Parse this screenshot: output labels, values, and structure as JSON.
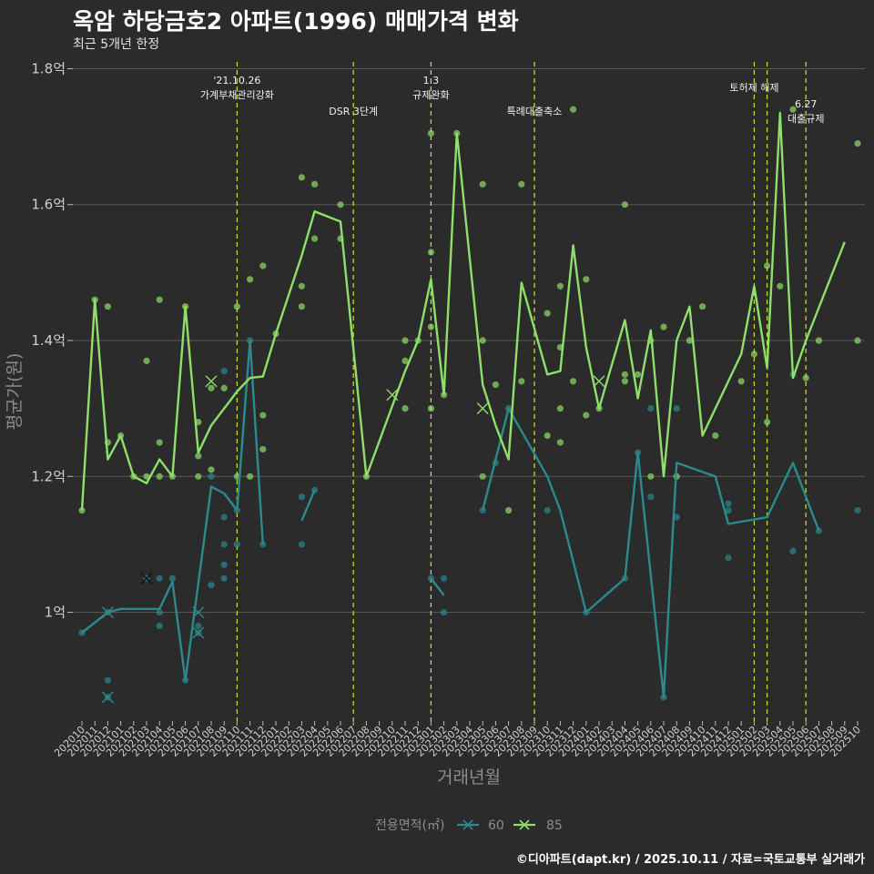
{
  "header": {
    "title": "옥암 하당금호2 아파트(1996) 매매가격 변화",
    "subtitle": "최근 5개년 한정"
  },
  "footer": "©디아파트(dapt.kr) / 2025.10.11 / 자료=국토교통부 실거래가",
  "colors": {
    "s60": "#2a8a8e",
    "s85": "#8ee06a",
    "event": "#c8d62a",
    "grid": "#5a5a5a"
  },
  "chart_data": {
    "type": "line",
    "title": "옥암 하당금호2 아파트(1996) 매매가격 변화",
    "xlabel": "거래년월",
    "ylabel": "평균가(원)",
    "ylim": [
      0.84,
      1.81
    ],
    "yticks": [
      1.0,
      1.2,
      1.4,
      1.6,
      1.8
    ],
    "ytick_labels": [
      "1억",
      "1.2억",
      "1.4억",
      "1.6억",
      "1.8억"
    ],
    "x_labels": [
      "202010",
      "202011",
      "202012",
      "202101",
      "202102",
      "202103",
      "202104",
      "202105",
      "202106",
      "202107",
      "202108",
      "202109",
      "202110",
      "202111",
      "202112",
      "202201",
      "202202",
      "202203",
      "202204",
      "202205",
      "202206",
      "202207",
      "202208",
      "202209",
      "202210",
      "202211",
      "202212",
      "202301",
      "202302",
      "202303",
      "202304",
      "202305",
      "202306",
      "202307",
      "202308",
      "202309",
      "202310",
      "202311",
      "202312",
      "202401",
      "202402",
      "202403",
      "202404",
      "202405",
      "202406",
      "202407",
      "202408",
      "202409",
      "202410",
      "202411",
      "202412",
      "202501",
      "202502",
      "202503",
      "202504",
      "202505",
      "202506",
      "202507",
      "202508",
      "202509",
      "202510"
    ],
    "legend_title": "전용면적(㎡)",
    "events": [
      {
        "x": 12,
        "lines": [
          "'21.10.26",
          "가계부채관리강화"
        ],
        "row": 0
      },
      {
        "x": 21,
        "lines": [
          "DSR 3단계"
        ],
        "row": 2
      },
      {
        "x": 27,
        "lines": [
          "1.3",
          "규제완화"
        ],
        "row": 0
      },
      {
        "x": 35,
        "lines": [
          "특례대출축소"
        ],
        "row": 2
      },
      {
        "x": 52,
        "lines": [
          "토허제 해제"
        ],
        "row": 1
      },
      {
        "x": 53,
        "lines": [],
        "row": 1
      },
      {
        "x": 56,
        "lines": [
          "6.27",
          "대출규제"
        ],
        "row": 3
      }
    ],
    "series": [
      {
        "name": "60",
        "line": [
          [
            0,
            0.97
          ],
          [
            2,
            1.0
          ],
          [
            3,
            1.005
          ],
          [
            6,
            1.005
          ],
          [
            7,
            1.045
          ],
          [
            8,
            0.9
          ],
          [
            10,
            1.185
          ],
          [
            11,
            1.175
          ],
          [
            12,
            1.15
          ],
          [
            13,
            1.4
          ],
          [
            14,
            1.1
          ],
          null,
          [
            17,
            1.135
          ],
          [
            18,
            1.18
          ],
          null,
          [
            27,
            1.05
          ],
          [
            28,
            1.025
          ],
          null,
          [
            31,
            1.15
          ],
          [
            33,
            1.3
          ],
          [
            36,
            1.2
          ],
          [
            37,
            1.15
          ],
          [
            39,
            1.0
          ],
          [
            42,
            1.05
          ],
          [
            43,
            1.235
          ],
          [
            45,
            0.875
          ],
          [
            46,
            1.22
          ],
          [
            49,
            1.2
          ],
          [
            50,
            1.13
          ],
          [
            53,
            1.14
          ],
          [
            55,
            1.22
          ],
          [
            57,
            1.12
          ]
        ],
        "points": [
          [
            0,
            0.97
          ],
          [
            2,
            0.9
          ],
          [
            2,
            1.0
          ],
          [
            2,
            0.875
          ],
          [
            5,
            1.05
          ],
          [
            6,
            1.05
          ],
          [
            6,
            0.98
          ],
          [
            6,
            1.0
          ],
          [
            7,
            1.05
          ],
          [
            8,
            0.9
          ],
          [
            9,
            0.98
          ],
          [
            9,
            0.97
          ],
          [
            10,
            1.04
          ],
          [
            10,
            1.2
          ],
          [
            11,
            1.14
          ],
          [
            11,
            1.1
          ],
          [
            11,
            1.07
          ],
          [
            11,
            1.05
          ],
          [
            11,
            1.355
          ],
          [
            12,
            1.15
          ],
          [
            12,
            1.1
          ],
          [
            13,
            1.4
          ],
          [
            14,
            1.1
          ],
          [
            17,
            1.17
          ],
          [
            17,
            1.1
          ],
          [
            18,
            1.18
          ],
          [
            27,
            1.05
          ],
          [
            28,
            1.0
          ],
          [
            28,
            1.05
          ],
          [
            31,
            1.15
          ],
          [
            32,
            1.22
          ],
          [
            33,
            1.3
          ],
          [
            36,
            1.15
          ],
          [
            39,
            1.0
          ],
          [
            42,
            1.05
          ],
          [
            44,
            1.3
          ],
          [
            44,
            1.17
          ],
          [
            43,
            1.235
          ],
          [
            45,
            0.875
          ],
          [
            46,
            1.3
          ],
          [
            46,
            1.14
          ],
          [
            50,
            1.16
          ],
          [
            50,
            1.15
          ],
          [
            50,
            1.08
          ],
          [
            55,
            1.35
          ],
          [
            55,
            1.09
          ],
          [
            57,
            1.12
          ],
          [
            60,
            1.15
          ]
        ],
        "crosses": [
          [
            2,
            1.0
          ],
          [
            2,
            0.875
          ],
          [
            5,
            1.05
          ],
          [
            9,
            1.0
          ],
          [
            9,
            0.97
          ]
        ]
      },
      {
        "name": "85",
        "line": [
          [
            0,
            1.15
          ],
          [
            1,
            1.46
          ],
          [
            2,
            1.225
          ],
          [
            3,
            1.26
          ],
          [
            4,
            1.2
          ],
          [
            5,
            1.19
          ],
          [
            6,
            1.225
          ],
          [
            7,
            1.2
          ],
          [
            8,
            1.45
          ],
          [
            9,
            1.235
          ],
          [
            10,
            1.275
          ],
          [
            12,
            1.325
          ],
          [
            13,
            1.345
          ],
          [
            14,
            1.347
          ],
          [
            15,
            1.41
          ],
          [
            17,
            1.525
          ],
          [
            18,
            1.59
          ],
          [
            20,
            1.575
          ],
          [
            22,
            1.2
          ],
          [
            25,
            1.355
          ],
          [
            26,
            1.4
          ],
          [
            27,
            1.49
          ],
          [
            28,
            1.32
          ],
          [
            29,
            1.705
          ],
          [
            31,
            1.335
          ],
          [
            32,
            1.275
          ],
          [
            33,
            1.225
          ],
          [
            34,
            1.485
          ],
          [
            36,
            1.35
          ],
          [
            37,
            1.355
          ],
          [
            38,
            1.54
          ],
          [
            39,
            1.39
          ],
          [
            40,
            1.3
          ],
          [
            42,
            1.43
          ],
          [
            43,
            1.315
          ],
          [
            44,
            1.415
          ],
          [
            45,
            1.2
          ],
          [
            46,
            1.4
          ],
          [
            47,
            1.45
          ],
          [
            48,
            1.26
          ],
          [
            51,
            1.38
          ],
          [
            52,
            1.48
          ],
          [
            53,
            1.36
          ],
          [
            54,
            1.735
          ],
          [
            55,
            1.345
          ],
          [
            56,
            1.4
          ],
          [
            59,
            1.545
          ]
        ],
        "points": [
          [
            0,
            1.15
          ],
          [
            1,
            1.46
          ],
          [
            2,
            1.45
          ],
          [
            2,
            1.25
          ],
          [
            3,
            1.26
          ],
          [
            4,
            1.2
          ],
          [
            5,
            1.37
          ],
          [
            5,
            1.2
          ],
          [
            6,
            1.46
          ],
          [
            6,
            1.25
          ],
          [
            6,
            1.2
          ],
          [
            7,
            1.2
          ],
          [
            8,
            1.45
          ],
          [
            9,
            1.28
          ],
          [
            9,
            1.23
          ],
          [
            9,
            1.2
          ],
          [
            10,
            1.33
          ],
          [
            10,
            1.21
          ],
          [
            11,
            1.33
          ],
          [
            12,
            1.45
          ],
          [
            12,
            1.2
          ],
          [
            13,
            1.49
          ],
          [
            13,
            1.2
          ],
          [
            14,
            1.51
          ],
          [
            14,
            1.29
          ],
          [
            14,
            1.24
          ],
          [
            15,
            1.41
          ],
          [
            17,
            1.64
          ],
          [
            17,
            1.48
          ],
          [
            17,
            1.45
          ],
          [
            18,
            1.63
          ],
          [
            18,
            1.55
          ],
          [
            20,
            1.6
          ],
          [
            20,
            1.55
          ],
          [
            22,
            1.2
          ],
          [
            25,
            1.4
          ],
          [
            25,
            1.37
          ],
          [
            25,
            1.3
          ],
          [
            26,
            1.4
          ],
          [
            27,
            1.705
          ],
          [
            27,
            1.53
          ],
          [
            27,
            1.42
          ],
          [
            27,
            1.3
          ],
          [
            28,
            1.32
          ],
          [
            29,
            1.705
          ],
          [
            31,
            1.63
          ],
          [
            31,
            1.4
          ],
          [
            31,
            1.2
          ],
          [
            32,
            1.335
          ],
          [
            33,
            1.15
          ],
          [
            34,
            1.63
          ],
          [
            34,
            1.34
          ],
          [
            36,
            1.44
          ],
          [
            36,
            1.26
          ],
          [
            37,
            1.48
          ],
          [
            37,
            1.39
          ],
          [
            37,
            1.3
          ],
          [
            37,
            1.25
          ],
          [
            38,
            1.74
          ],
          [
            38,
            1.34
          ],
          [
            39,
            1.49
          ],
          [
            39,
            1.29
          ],
          [
            40,
            1.3
          ],
          [
            42,
            1.6
          ],
          [
            42,
            1.35
          ],
          [
            42,
            1.34
          ],
          [
            43,
            1.35
          ],
          [
            44,
            1.4
          ],
          [
            44,
            1.2
          ],
          [
            45,
            1.42
          ],
          [
            46,
            1.2
          ],
          [
            47,
            1.4
          ],
          [
            48,
            1.45
          ],
          [
            49,
            1.26
          ],
          [
            51,
            1.34
          ],
          [
            52,
            1.38
          ],
          [
            53,
            1.51
          ],
          [
            53,
            1.28
          ],
          [
            54,
            1.48
          ],
          [
            55,
            1.74
          ],
          [
            56,
            1.345
          ],
          [
            57,
            1.4
          ],
          [
            60,
            1.69
          ],
          [
            60,
            1.4
          ]
        ],
        "crosses": [
          [
            10,
            1.34
          ],
          [
            24,
            1.32
          ],
          [
            31,
            1.3
          ],
          [
            40,
            1.34
          ]
        ]
      }
    ]
  }
}
